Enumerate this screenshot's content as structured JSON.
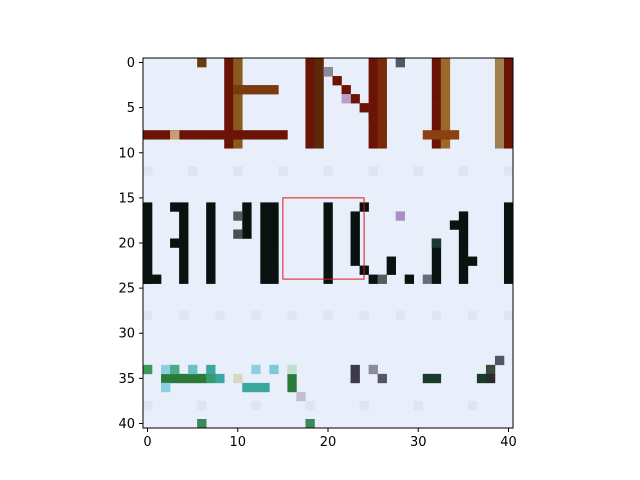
{
  "figure": {
    "type": "image-crop-plot",
    "x_ticks": [
      "0",
      "10",
      "20",
      "30",
      "40"
    ],
    "y_ticks": [
      "0",
      "5",
      "10",
      "15",
      "20",
      "25",
      "30",
      "35",
      "40"
    ],
    "x_range": [
      -0.5,
      40.5
    ],
    "y_range": [
      -0.5,
      40.5
    ],
    "y_axis_inverted": true,
    "highlight_box": {
      "x0": 15,
      "y0": 15,
      "x1": 24,
      "y1": 24,
      "color": "#e4141b"
    },
    "background_color": "#e9eefb",
    "ink_color": "#0a120f",
    "top_ink_color": "#6b1406"
  }
}
